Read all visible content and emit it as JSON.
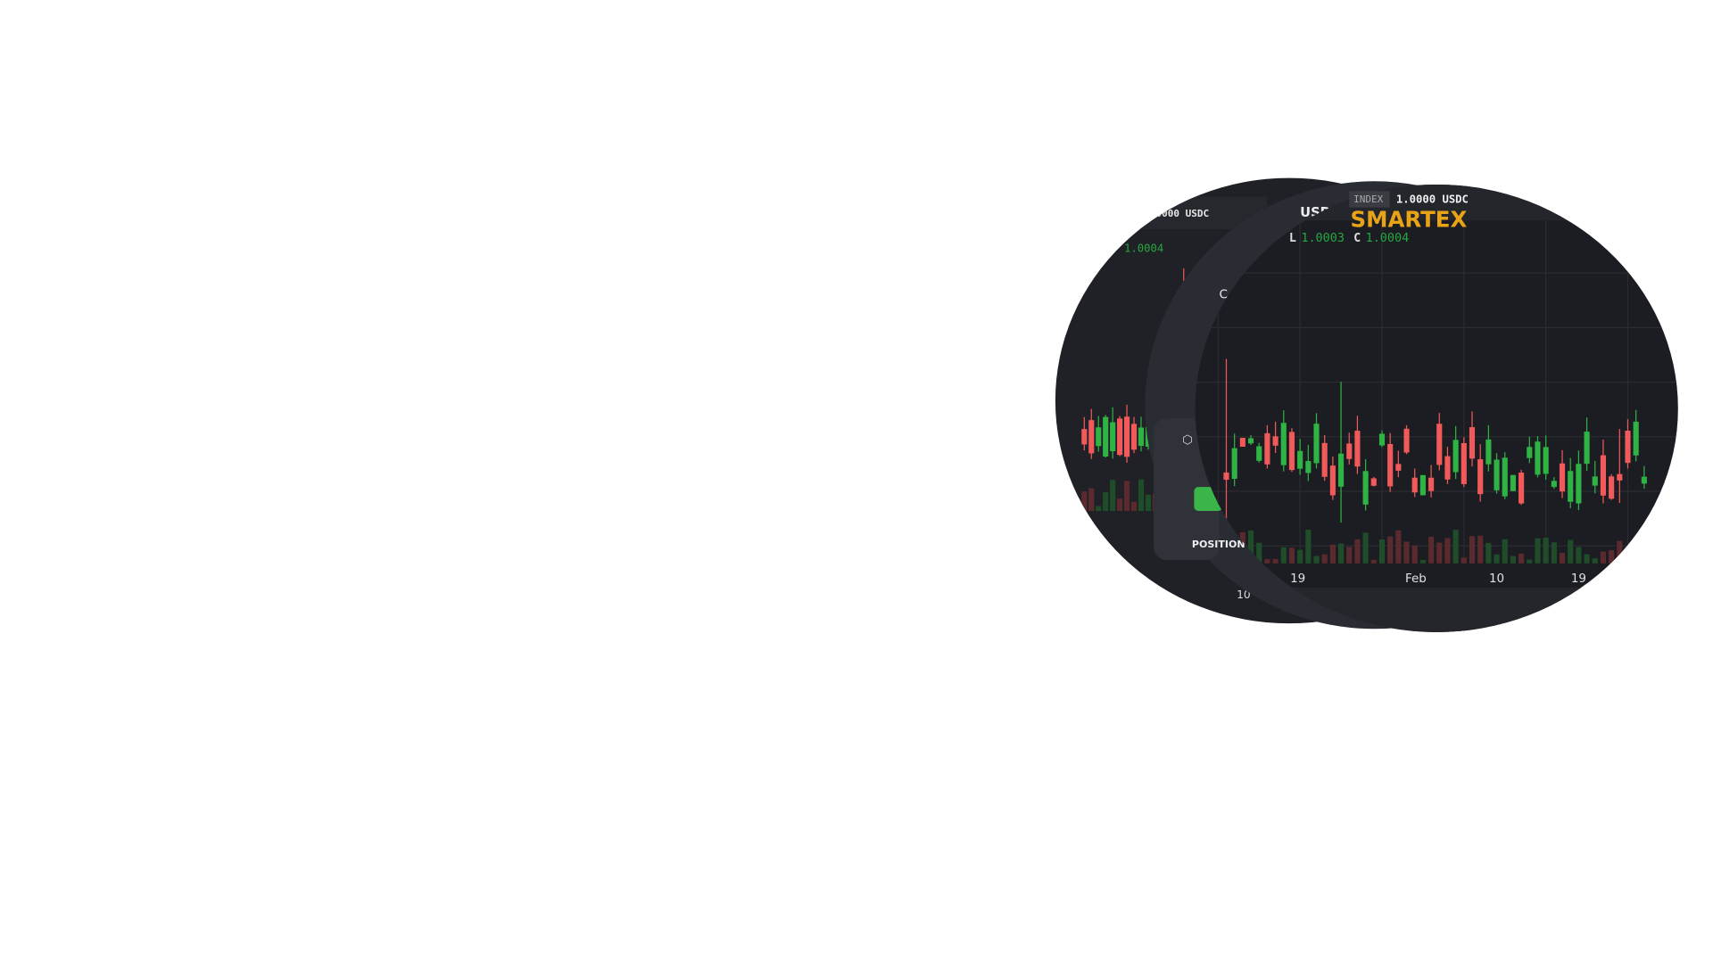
{
  "header": {
    "brand": "SMARTEX",
    "index_label": "INDEX",
    "index_value": "1.0000 USDC",
    "low_label": "L",
    "low_value": "1.0003",
    "close_label": "C",
    "close_value": "1.0004"
  },
  "x_axis": [
    "19",
    "Feb",
    "10",
    "19"
  ],
  "back_panel": {
    "price": "0000 USDC",
    "close_value": "1.0004",
    "axis_label": "10",
    "button": "POSITION",
    "pair": "USD",
    "letter": "C"
  }
}
